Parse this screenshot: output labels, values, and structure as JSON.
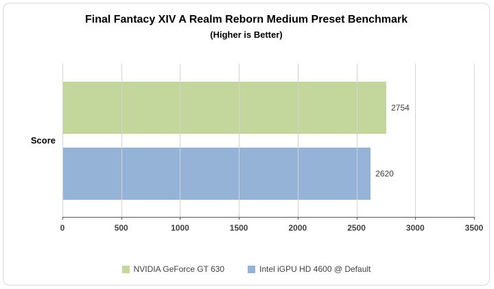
{
  "chart_data": {
    "type": "bar",
    "orientation": "horizontal",
    "title": "Final Fantacy XIV A Realm Reborn Medium Preset Benchmark",
    "subtitle": "(Higher is Better)",
    "categories": [
      "Score"
    ],
    "series": [
      {
        "name": "NVIDIA GeForce GT 630",
        "values": [
          2754
        ],
        "color": "#c3d69b"
      },
      {
        "name": "Intel iGPU HD 4600 @ Default",
        "values": [
          2620
        ],
        "color": "#95b3d7"
      }
    ],
    "xlim": [
      0,
      3500
    ],
    "xticks": [
      0,
      500,
      1000,
      1500,
      2000,
      2500,
      3000,
      3500
    ],
    "grid": "vertical",
    "legend_position": "bottom",
    "axis_color": "#595959",
    "gridline_color": "#d3d3d3",
    "label_color": "#404040"
  }
}
